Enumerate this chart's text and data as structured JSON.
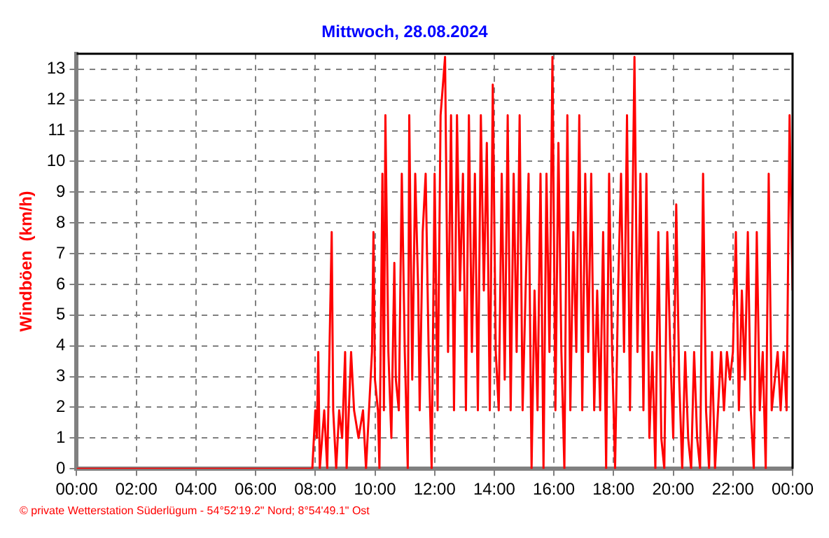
{
  "chart_data": {
    "type": "line",
    "title": "Mittwoch, 28.08.2024",
    "ylabel": "Windböen  (km/h)",
    "annotations": [
      "© private Wetterstation Süderlügum  -  54°52'19.2\" Nord; 8°54'49.1\" Ost"
    ],
    "xlim": [
      0,
      24
    ],
    "xticks": [
      {
        "value": 0,
        "label": "00:00"
      },
      {
        "value": 2,
        "label": "02:00"
      },
      {
        "value": 4,
        "label": "04:00"
      },
      {
        "value": 6,
        "label": "06:00"
      },
      {
        "value": 8,
        "label": "08:00"
      },
      {
        "value": 10,
        "label": "10:00"
      },
      {
        "value": 12,
        "label": "12:00"
      },
      {
        "value": 14,
        "label": "14:00"
      },
      {
        "value": 16,
        "label": "16:00"
      },
      {
        "value": 18,
        "label": "18:00"
      },
      {
        "value": 20,
        "label": "20:00"
      },
      {
        "value": 22,
        "label": "22:00"
      },
      {
        "value": 24,
        "label": "00:00"
      }
    ],
    "ylim": [
      0,
      13.5
    ],
    "yticks": [
      0,
      1,
      2,
      3,
      4,
      5,
      6,
      7,
      8,
      9,
      10,
      11,
      12,
      13
    ],
    "grid": true,
    "marker": "none",
    "series": [
      {
        "color": "#ff0000",
        "x": [
          0,
          7.9,
          8.0,
          8.05,
          8.1,
          8.15,
          8.3,
          8.4,
          8.55,
          8.6,
          8.7,
          8.8,
          8.9,
          9.0,
          9.05,
          9.2,
          9.3,
          9.45,
          9.6,
          9.7,
          9.8,
          9.9,
          9.95,
          10.0,
          10.1,
          10.15,
          10.25,
          10.3,
          10.35,
          10.45,
          10.55,
          10.65,
          10.7,
          10.8,
          10.9,
          11.0,
          11.1,
          11.15,
          11.25,
          11.35,
          11.45,
          11.5,
          11.6,
          11.7,
          11.8,
          11.9,
          12.0,
          12.1,
          12.2,
          12.35,
          12.45,
          12.55,
          12.65,
          12.75,
          12.85,
          12.95,
          13.05,
          13.15,
          13.25,
          13.35,
          13.45,
          13.55,
          13.65,
          13.75,
          13.85,
          13.95,
          14.05,
          14.15,
          14.25,
          14.35,
          14.45,
          14.55,
          14.65,
          14.75,
          14.85,
          14.95,
          15.05,
          15.15,
          15.25,
          15.35,
          15.45,
          15.55,
          15.65,
          15.75,
          15.85,
          15.95,
          16.05,
          16.15,
          16.25,
          16.35,
          16.45,
          16.55,
          16.65,
          16.75,
          16.85,
          16.95,
          17.05,
          17.15,
          17.25,
          17.35,
          17.45,
          17.55,
          17.65,
          17.75,
          17.85,
          17.95,
          18.05,
          18.15,
          18.25,
          18.35,
          18.45,
          18.55,
          18.7,
          18.8,
          18.9,
          19.0,
          19.1,
          19.2,
          19.3,
          19.4,
          19.5,
          19.6,
          19.7,
          19.8,
          19.9,
          20.0,
          20.1,
          20.2,
          20.3,
          20.4,
          20.5,
          20.6,
          20.7,
          20.8,
          20.9,
          21.0,
          21.1,
          21.2,
          21.3,
          21.4,
          21.6,
          21.7,
          21.8,
          21.9,
          22.0,
          22.1,
          22.2,
          22.3,
          22.4,
          22.5,
          22.6,
          22.7,
          22.8,
          22.9,
          23.0,
          23.1,
          23.2,
          23.3,
          23.5,
          23.6,
          23.7,
          23.8,
          23.9,
          24.0
        ],
        "values": [
          0,
          0,
          1.9,
          1,
          3.8,
          0,
          1.9,
          0,
          7.7,
          1.9,
          0,
          1.9,
          1,
          3.8,
          0,
          3.8,
          1.9,
          1,
          1.9,
          0,
          1.9,
          3.8,
          7.7,
          2.9,
          1.9,
          0,
          9.6,
          1.9,
          11.5,
          3.8,
          1,
          6.7,
          2.9,
          1.9,
          9.6,
          3.8,
          0,
          11.5,
          2.9,
          9.6,
          5.8,
          1.9,
          7.7,
          9.6,
          3.8,
          0,
          9.6,
          1.9,
          11.5,
          13.4,
          3.8,
          11.5,
          1.9,
          11.5,
          5.8,
          9.6,
          1.9,
          11.5,
          3.8,
          9.6,
          1.9,
          11.5,
          5.8,
          10.6,
          1.9,
          12.5,
          3.8,
          1.9,
          9.6,
          2.9,
          11.5,
          1.9,
          9.6,
          3.8,
          11.5,
          1.9,
          5.8,
          9.6,
          0,
          5.8,
          1.9,
          9.6,
          0,
          9.6,
          3.8,
          13.4,
          1.9,
          10.6,
          3.8,
          0,
          11.5,
          1.9,
          7.7,
          3.8,
          11.5,
          1.9,
          9.6,
          3.8,
          9.6,
          1.9,
          5.8,
          1.9,
          7.7,
          0,
          9.6,
          3.8,
          0,
          5.8,
          9.6,
          3.8,
          11.5,
          1.9,
          13.4,
          3.8,
          9.6,
          1.9,
          9.6,
          1,
          3.8,
          0,
          7.7,
          1,
          0,
          7.7,
          3.8,
          1,
          8.6,
          2.9,
          0,
          3.8,
          1,
          0,
          3.8,
          1,
          0,
          9.6,
          1.9,
          0,
          3.8,
          0,
          3.8,
          1.9,
          3.8,
          2.9,
          3.8,
          7.7,
          1.9,
          5.8,
          2.9,
          7.7,
          1.9,
          0,
          7.7,
          1.9,
          3.8,
          0,
          9.6,
          1.9,
          3.8,
          1.9,
          3.8,
          1.9,
          11.5,
          5.8
        ]
      }
    ]
  }
}
